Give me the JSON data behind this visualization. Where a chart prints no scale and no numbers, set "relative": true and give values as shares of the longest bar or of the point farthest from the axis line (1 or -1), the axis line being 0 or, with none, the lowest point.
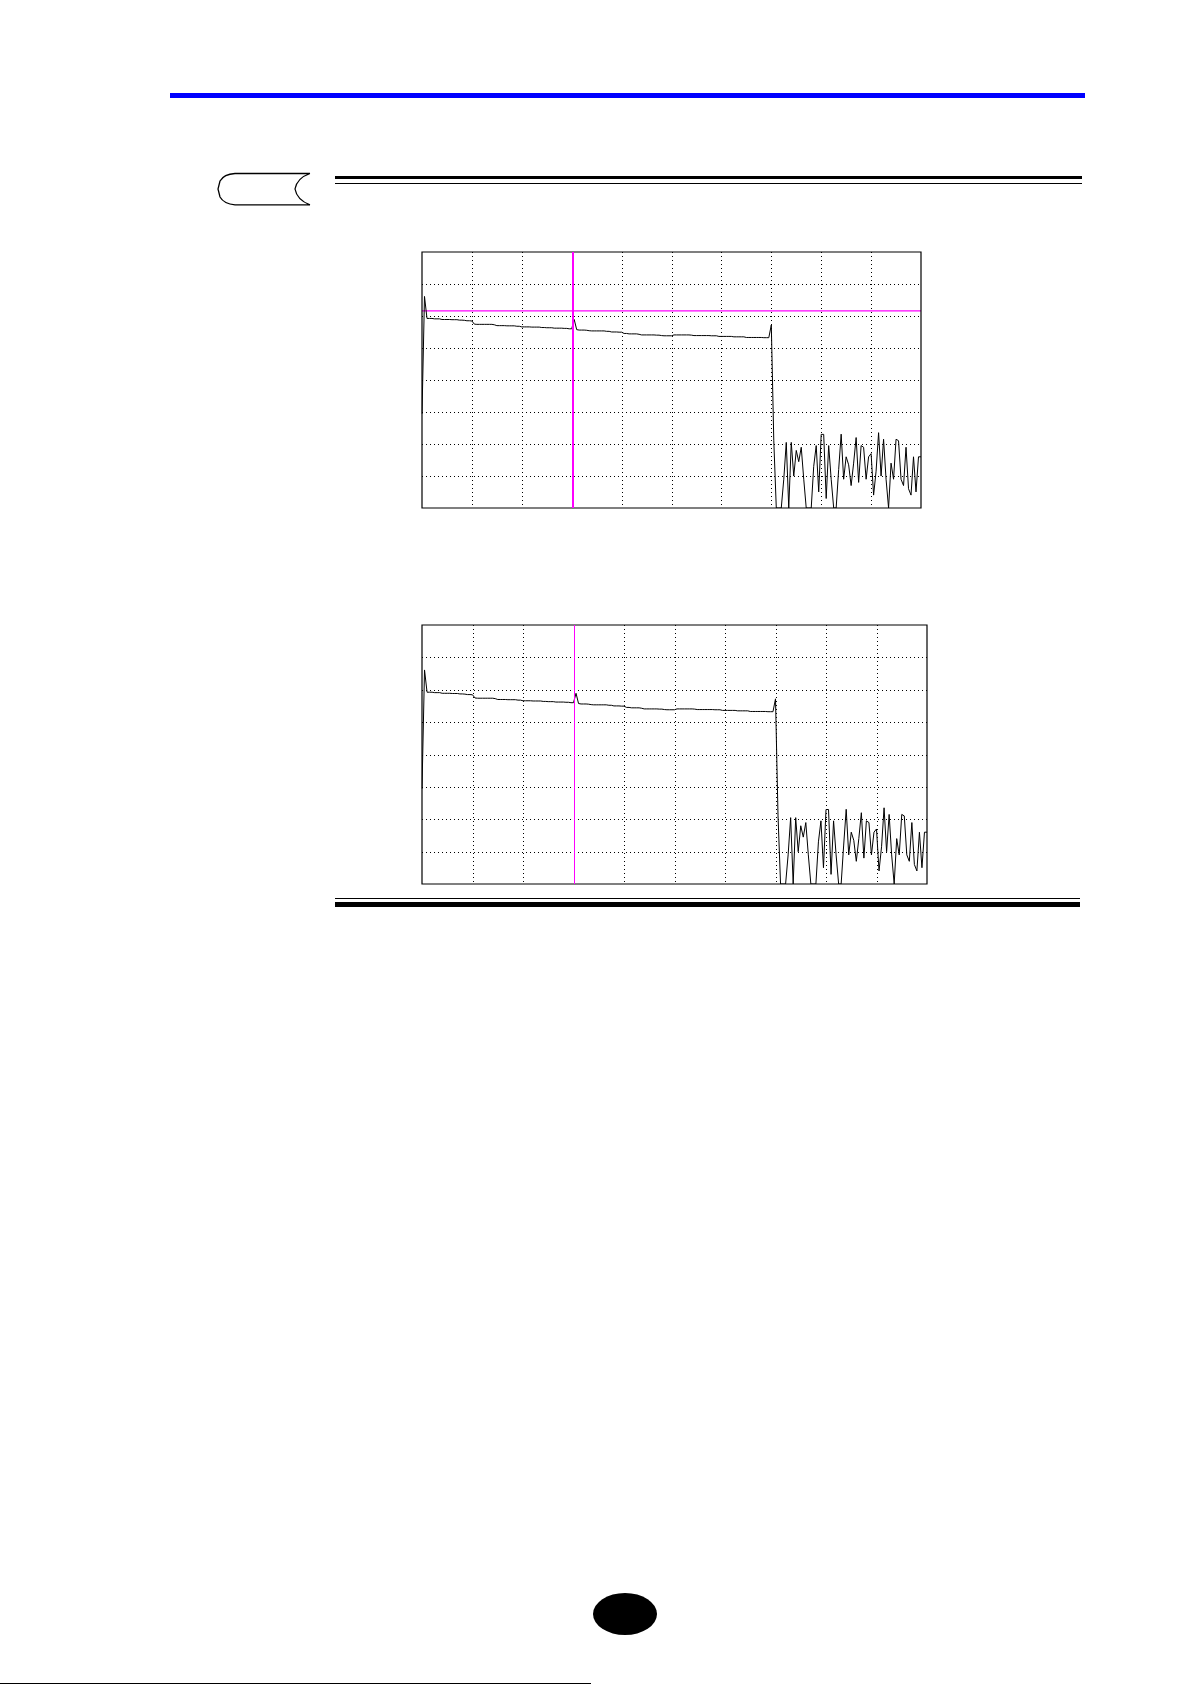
{
  "chart_data": [
    {
      "type": "line",
      "relative": true,
      "grid": true,
      "categories": [
        null,
        null,
        null,
        null,
        null,
        null,
        null,
        null,
        null,
        null,
        null,
        null,
        null,
        null,
        null,
        null,
        null,
        null,
        null,
        null,
        null,
        null,
        null,
        null,
        null,
        null,
        null,
        null,
        null,
        null,
        null,
        null,
        null,
        null,
        null,
        null,
        null,
        null,
        null,
        null,
        null,
        null,
        null,
        null,
        null,
        null,
        null,
        null,
        null,
        null,
        null,
        null,
        null,
        null,
        null,
        null,
        null,
        null,
        null,
        null,
        null,
        null,
        null,
        null,
        null,
        null,
        null,
        null,
        null,
        null,
        null,
        null,
        null,
        null,
        null,
        null,
        null,
        null,
        null,
        null,
        null,
        null,
        null,
        null,
        null,
        null,
        null,
        null,
        null,
        null,
        null,
        null,
        null,
        null,
        null,
        null,
        null,
        null,
        null,
        null,
        null,
        null,
        null,
        null,
        null,
        null,
        null,
        null,
        null,
        null,
        null,
        null,
        null,
        null,
        null,
        null,
        null,
        null,
        null,
        null,
        null,
        null,
        null,
        null,
        null,
        null,
        null,
        null,
        null,
        null,
        null,
        null,
        null,
        null,
        null,
        null,
        null,
        null,
        null,
        null,
        null,
        null,
        null,
        null,
        null,
        null,
        null,
        null,
        null,
        null,
        null,
        null,
        null,
        null,
        null,
        null,
        null,
        null,
        null,
        null,
        null,
        null,
        null,
        null,
        null,
        null,
        null,
        null,
        null,
        null,
        null,
        null,
        null,
        null,
        null,
        null,
        null,
        null,
        null,
        null,
        null,
        null,
        null,
        null,
        null,
        null,
        null,
        null,
        null,
        null,
        null,
        null,
        null,
        null,
        null,
        null,
        null,
        null,
        null,
        null,
        null
      ],
      "series": [
        {
          "color": "#000000",
          "values": [
            0.445,
            1,
            0.896,
            0.896,
            0.896,
            0.894,
            0.894,
            0.894,
            0.891,
            0.891,
            0.891,
            0.891,
            0.89,
            0.89,
            0.89,
            0.888,
            0.888,
            0.887,
            0.885,
            0.885,
            0.884,
            0.869,
            0.868,
            0.868,
            0.868,
            0.868,
            0.868,
            0.868,
            0.868,
            0.866,
            0.862,
            0.862,
            0.862,
            0.862,
            0.861,
            0.861,
            0.861,
            0.861,
            0.859,
            0.859,
            0.856,
            0.856,
            0.856,
            0.856,
            0.855,
            0.855,
            0.855,
            0.855,
            0.853,
            0.853,
            0.852,
            0.852,
            0.852,
            0.85,
            0.85,
            0.85,
            0.85,
            0.849,
            0.849,
            0.847,
            0.847,
            0.891,
            0.843,
            0.841,
            0.841,
            0.841,
            0.84,
            0.838,
            0.837,
            0.837,
            0.837,
            0.837,
            0.837,
            0.837,
            0.835,
            0.835,
            0.832,
            0.832,
            0.832,
            0.831,
            0.831,
            0.825,
            0.825,
            0.823,
            0.823,
            0.823,
            0.823,
            0.821,
            0.818,
            0.818,
            0.818,
            0.818,
            0.818,
            0.818,
            0.817,
            0.817,
            0.815,
            0.814,
            0.814,
            0.814,
            0.814,
            0.818,
            0.818,
            0.818,
            0.818,
            0.818,
            0.818,
            0.818,
            0.817,
            0.815,
            0.815,
            0.815,
            0.815,
            0.815,
            0.815,
            0.815,
            0.814,
            0.814,
            0.814,
            0.811,
            0.811,
            0.811,
            0.811,
            0.811,
            0.811,
            0.809,
            0.809,
            0.809,
            0.809,
            0.809,
            0.806,
            0.806,
            0.806,
            0.806,
            0.806,
            0.806,
            0.806,
            0.805,
            0.805,
            0.805,
            0.865,
            0.318,
            0,
            0,
            0,
            0.136,
            0.31,
            0,
            0.31,
            0.151,
            0.272,
            0.219,
            0.287,
            0.136,
            0,
            0,
            0,
            0.197,
            0.295,
            0.076,
            0.348,
            0.348,
            0.045,
            0.295,
            0.136,
            0,
            0,
            0.182,
            0.349,
            0.136,
            0.242,
            0.204,
            0.106,
            0.212,
            0.333,
            0.121,
            0.295,
            0.287,
            0.136,
            0.242,
            0.257,
            0.061,
            0.174,
            0.356,
            0.151,
            0.325,
            0.136,
            0,
            0.212,
            0.136,
            0.325,
            0.318,
            0.136,
            0.106,
            0.287,
            0.091,
            0.061,
            0.242,
            0.076,
            0.242,
            0.242
          ]
        }
      ],
      "ref_lines": [
        {
          "axis": "y",
          "value": 0.932,
          "color": "#ff00ff"
        }
      ]
    },
    {
      "type": "line",
      "relative": true,
      "grid": true,
      "categories": [
        null,
        null,
        null,
        null,
        null,
        null,
        null,
        null,
        null,
        null,
        null,
        null,
        null,
        null,
        null,
        null,
        null,
        null,
        null,
        null,
        null,
        null,
        null,
        null,
        null,
        null,
        null,
        null,
        null,
        null,
        null,
        null,
        null,
        null,
        null,
        null,
        null,
        null,
        null,
        null,
        null,
        null,
        null,
        null,
        null,
        null,
        null,
        null,
        null,
        null,
        null,
        null,
        null,
        null,
        null,
        null,
        null,
        null,
        null,
        null,
        null,
        null,
        null,
        null,
        null,
        null,
        null,
        null,
        null,
        null,
        null,
        null,
        null,
        null,
        null,
        null,
        null,
        null,
        null,
        null,
        null,
        null,
        null,
        null,
        null,
        null,
        null,
        null,
        null,
        null,
        null,
        null,
        null,
        null,
        null,
        null,
        null,
        null,
        null,
        null,
        null,
        null,
        null,
        null,
        null,
        null,
        null,
        null,
        null,
        null,
        null,
        null,
        null,
        null,
        null,
        null,
        null,
        null,
        null,
        null,
        null,
        null,
        null,
        null,
        null,
        null,
        null,
        null,
        null,
        null,
        null,
        null,
        null,
        null,
        null,
        null,
        null,
        null,
        null,
        null,
        null,
        null,
        null,
        null,
        null,
        null,
        null,
        null,
        null,
        null,
        null,
        null,
        null,
        null,
        null,
        null,
        null,
        null,
        null,
        null,
        null,
        null,
        null,
        null,
        null,
        null,
        null,
        null,
        null,
        null,
        null,
        null,
        null,
        null,
        null,
        null,
        null,
        null,
        null,
        null,
        null,
        null,
        null,
        null,
        null,
        null,
        null,
        null,
        null,
        null,
        null,
        null,
        null,
        null,
        null,
        null,
        null,
        null,
        null,
        null,
        null
      ],
      "series": [
        {
          "color": "#000000",
          "values": [
            0.445,
            1,
            0.896,
            0.896,
            0.896,
            0.894,
            0.894,
            0.894,
            0.891,
            0.891,
            0.891,
            0.891,
            0.89,
            0.89,
            0.89,
            0.888,
            0.888,
            0.887,
            0.885,
            0.885,
            0.884,
            0.869,
            0.868,
            0.868,
            0.868,
            0.868,
            0.868,
            0.868,
            0.868,
            0.866,
            0.862,
            0.862,
            0.862,
            0.862,
            0.861,
            0.861,
            0.861,
            0.861,
            0.859,
            0.859,
            0.856,
            0.856,
            0.856,
            0.856,
            0.855,
            0.855,
            0.855,
            0.855,
            0.853,
            0.853,
            0.852,
            0.852,
            0.852,
            0.85,
            0.85,
            0.85,
            0.85,
            0.849,
            0.849,
            0.847,
            0.847,
            0.891,
            0.843,
            0.841,
            0.841,
            0.841,
            0.84,
            0.838,
            0.837,
            0.837,
            0.837,
            0.837,
            0.837,
            0.837,
            0.835,
            0.835,
            0.832,
            0.832,
            0.832,
            0.831,
            0.831,
            0.825,
            0.825,
            0.823,
            0.823,
            0.823,
            0.823,
            0.821,
            0.818,
            0.818,
            0.818,
            0.818,
            0.818,
            0.818,
            0.817,
            0.817,
            0.815,
            0.814,
            0.814,
            0.814,
            0.814,
            0.818,
            0.818,
            0.818,
            0.818,
            0.818,
            0.818,
            0.818,
            0.817,
            0.815,
            0.815,
            0.815,
            0.815,
            0.815,
            0.815,
            0.815,
            0.814,
            0.814,
            0.814,
            0.811,
            0.811,
            0.811,
            0.811,
            0.811,
            0.811,
            0.809,
            0.809,
            0.809,
            0.809,
            0.809,
            0.806,
            0.806,
            0.806,
            0.806,
            0.806,
            0.806,
            0.806,
            0.805,
            0.805,
            0.805,
            0.865,
            0.318,
            0,
            0,
            0,
            0.136,
            0.31,
            0,
            0.31,
            0.151,
            0.272,
            0.219,
            0.287,
            0.136,
            0,
            0,
            0,
            0.197,
            0.295,
            0.076,
            0.348,
            0.348,
            0.045,
            0.295,
            0.136,
            0,
            0,
            0.182,
            0.349,
            0.136,
            0.242,
            0.204,
            0.106,
            0.212,
            0.333,
            0.121,
            0.295,
            0.287,
            0.136,
            0.242,
            0.257,
            0.061,
            0.174,
            0.356,
            0.151,
            0.325,
            0.136,
            0,
            0.212,
            0.136,
            0.325,
            0.318,
            0.136,
            0.106,
            0.287,
            0.091,
            0.061,
            0.242,
            0.076,
            0.242,
            0.242
          ]
        }
      ]
    }
  ]
}
